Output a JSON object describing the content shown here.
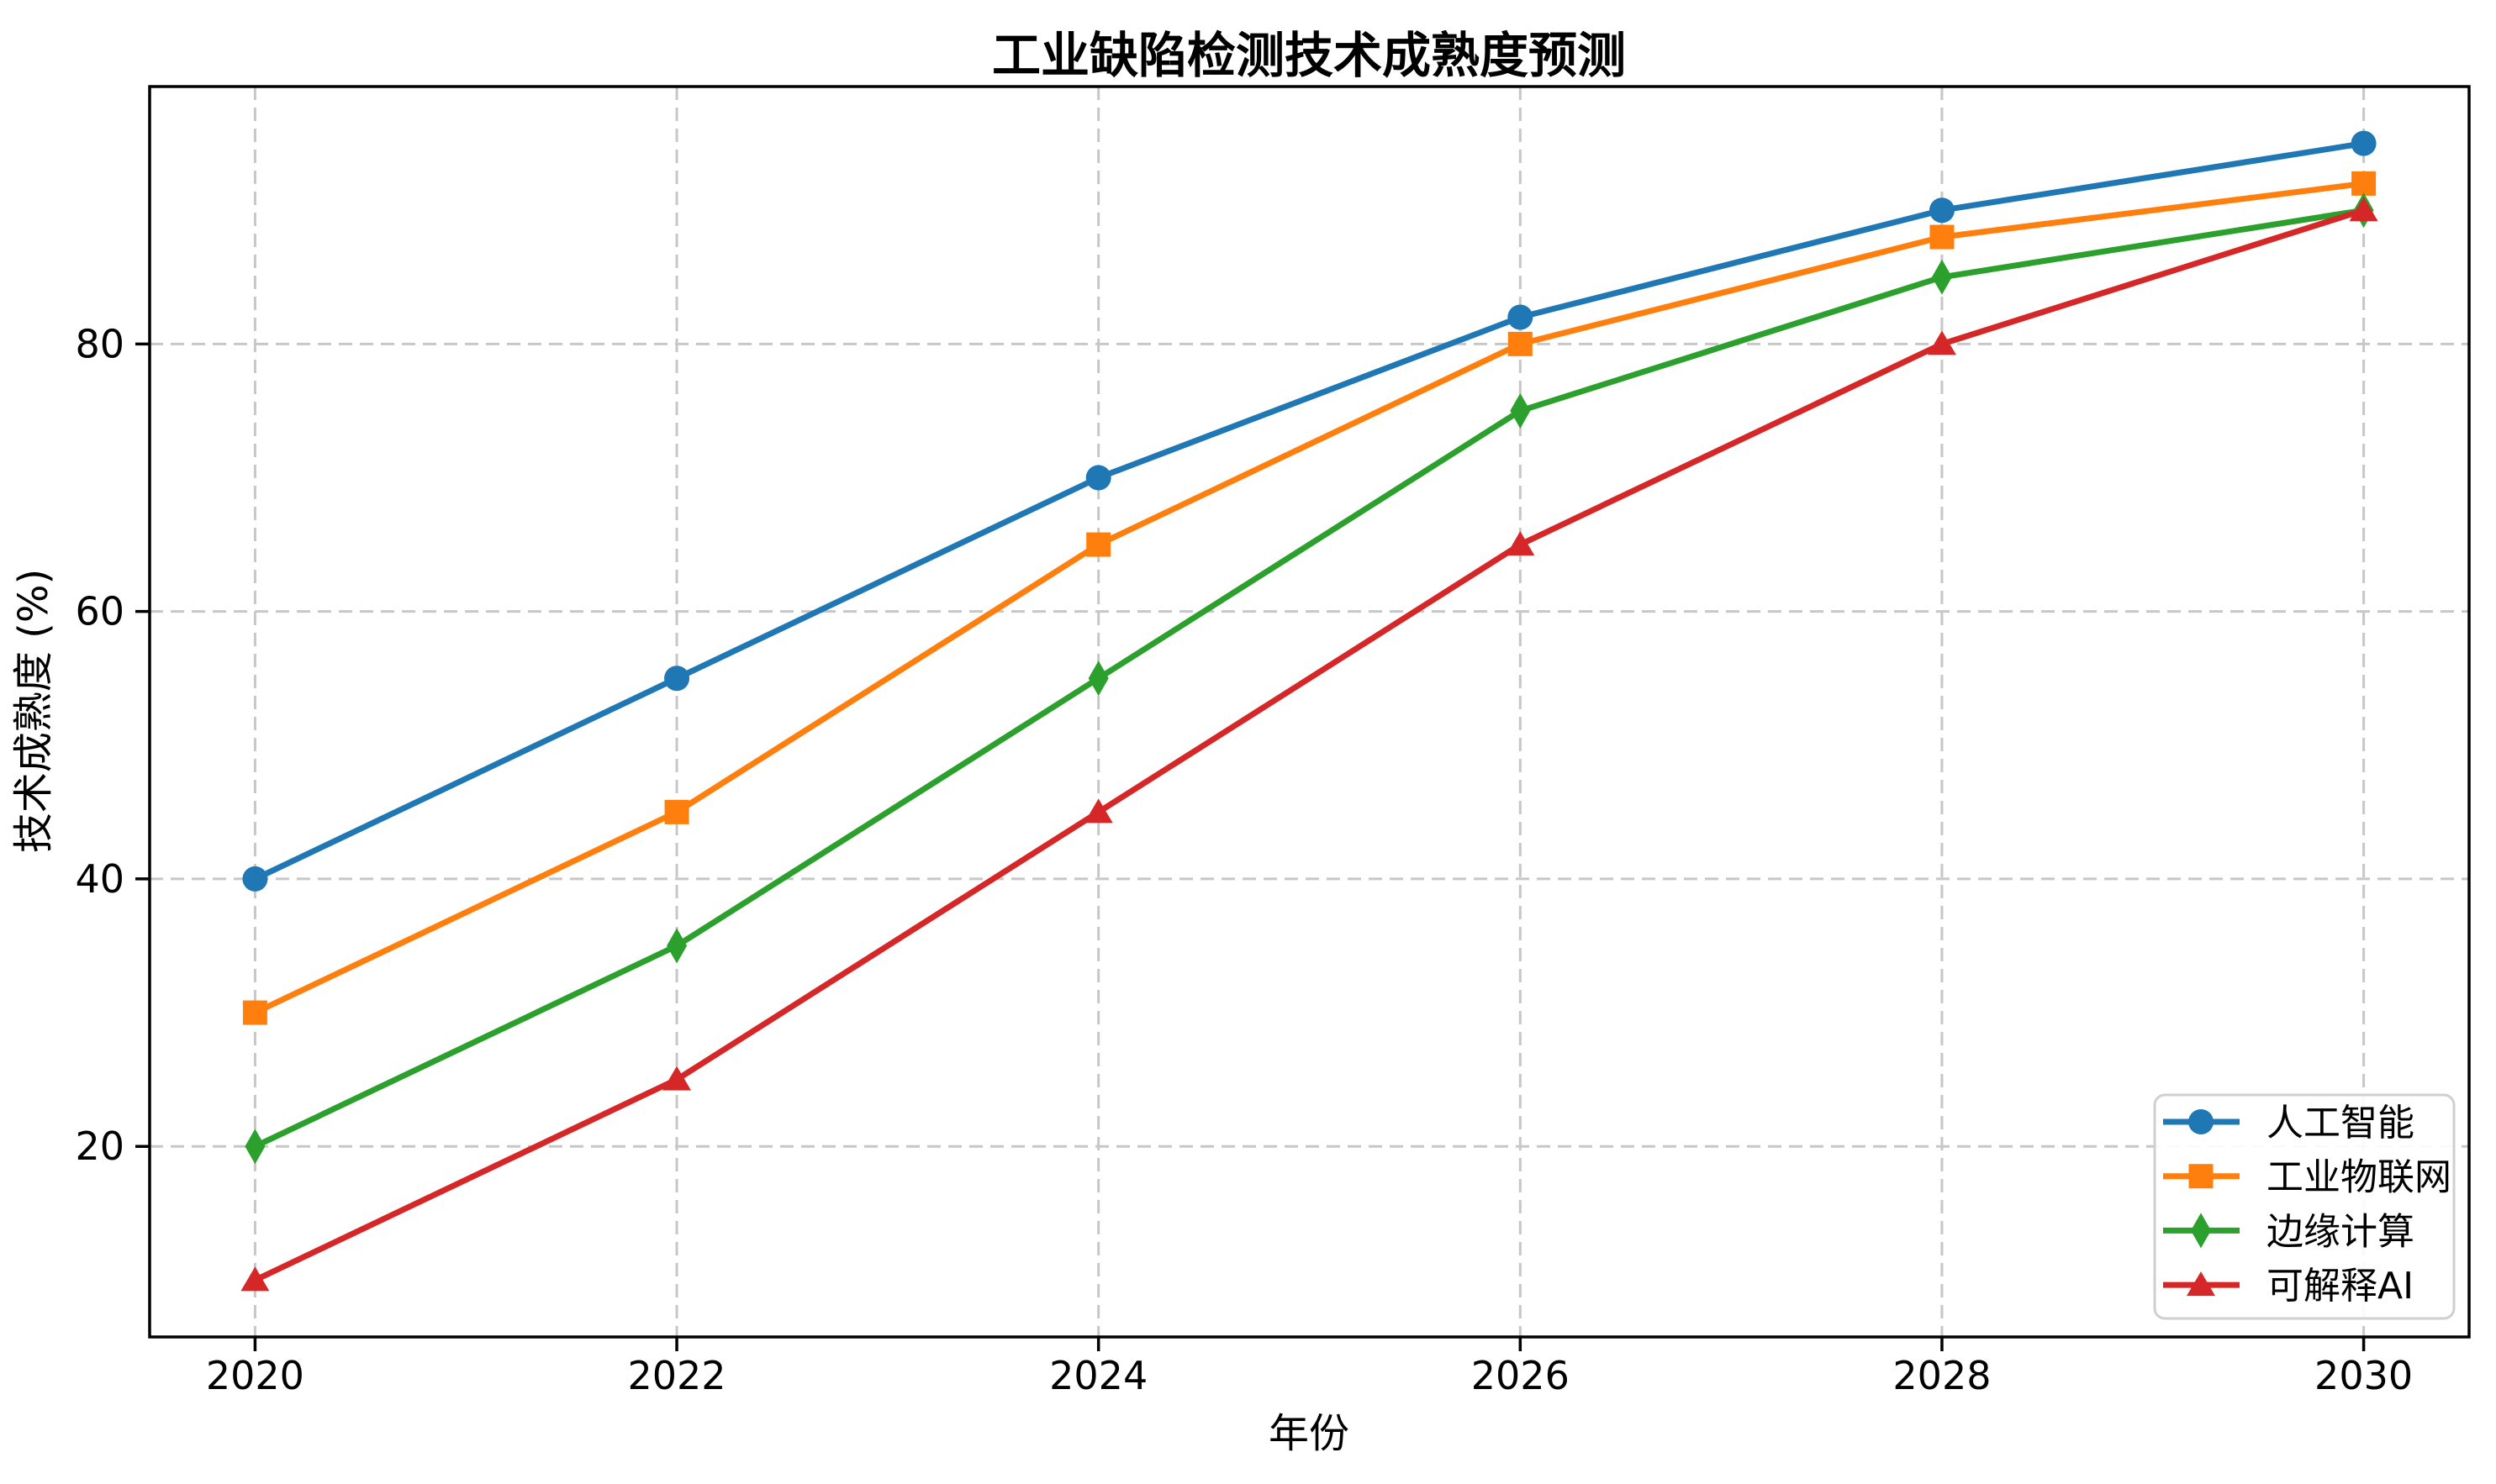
{
  "chart_data": {
    "type": "line",
    "title": "工业缺陷检测技术成熟度预测",
    "xlabel": "年份",
    "ylabel": "技术成熟度 (%)",
    "x": [
      2020,
      2022,
      2024,
      2026,
      2028,
      2030
    ],
    "xtick_labels": [
      "2020",
      "2022",
      "2024",
      "2026",
      "2028",
      "2030"
    ],
    "yticks": [
      20,
      40,
      60,
      80
    ],
    "ytick_labels": [
      "20",
      "40",
      "60",
      "80"
    ],
    "xlim": [
      2019.5,
      2030.5
    ],
    "ylim": [
      5.75,
      99.25
    ],
    "grid": {
      "visible": true,
      "style": "dashed",
      "color": "#c7c7c7"
    },
    "axes_color": "#000000",
    "background": "#ffffff",
    "legend": {
      "position": "lower-right",
      "border_color": "#cfcfcf",
      "background": "#ffffff"
    },
    "series": [
      {
        "name": "人工智能",
        "marker": "circle",
        "color": "#1f77b4",
        "values": [
          40,
          55,
          70,
          82,
          90,
          95
        ]
      },
      {
        "name": "工业物联网",
        "marker": "square",
        "color": "#ff7f0e",
        "values": [
          30,
          45,
          65,
          80,
          88,
          92
        ]
      },
      {
        "name": "边缘计算",
        "marker": "diamond",
        "color": "#2ca02c",
        "values": [
          20,
          35,
          55,
          75,
          85,
          90
        ]
      },
      {
        "name": "可解释AI",
        "marker": "triangle",
        "color": "#d62728",
        "values": [
          10,
          25,
          45,
          65,
          80,
          90
        ]
      }
    ]
  }
}
